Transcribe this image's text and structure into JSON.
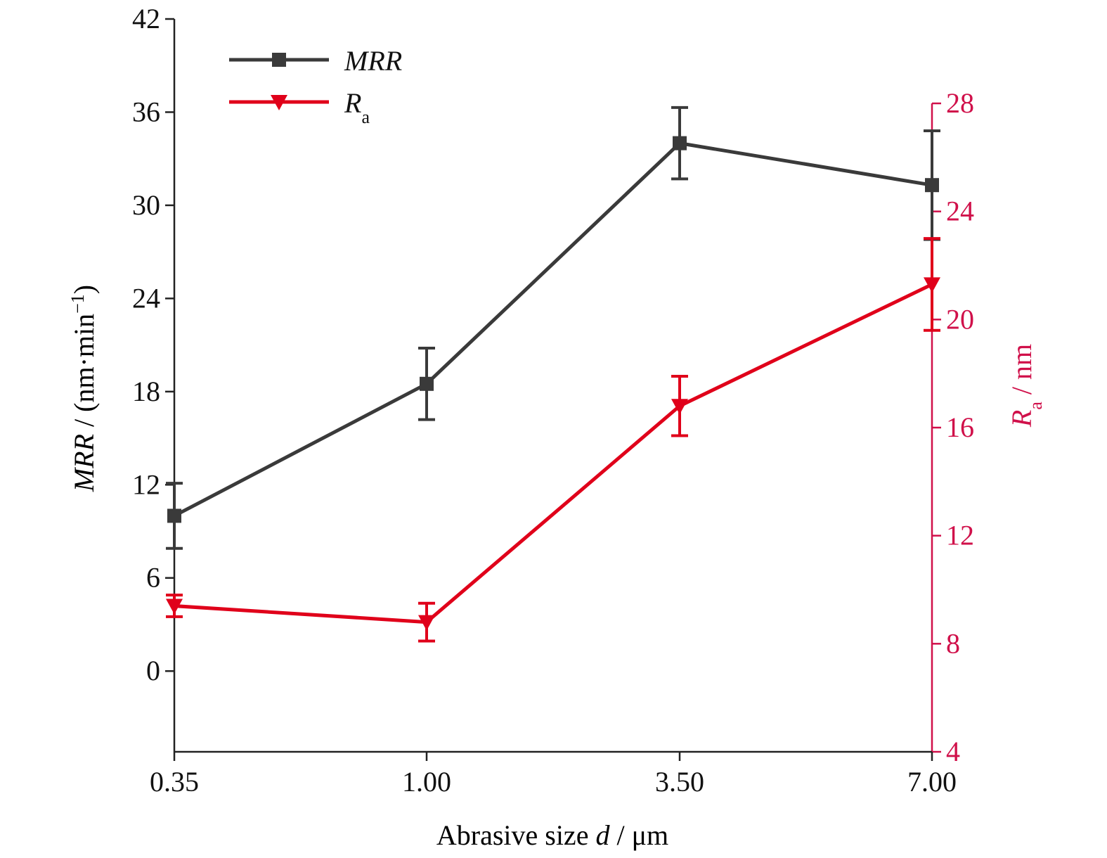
{
  "chart_data": {
    "type": "line",
    "xlabel_parts": [
      "Abrasive size ",
      "d",
      " / μm"
    ],
    "categories": [
      "0.35",
      "1.00",
      "3.50",
      "7.00"
    ],
    "y_left": {
      "label_parts": [
        "MRR",
        " / (nm·min",
        "−1",
        ")"
      ],
      "ylim": [
        -5.2,
        42
      ],
      "ticks": [
        0,
        6,
        12,
        18,
        24,
        30,
        36,
        42
      ],
      "tick_labels": [
        "0",
        "6",
        "12",
        "18",
        "24",
        "30",
        "36",
        "42"
      ]
    },
    "y_right": {
      "label_parts": [
        "R",
        "a",
        " / nm"
      ],
      "ylim": [
        4,
        28
      ],
      "ticks": [
        4,
        8,
        12,
        16,
        20,
        24,
        28
      ],
      "tick_labels": [
        "4",
        "8",
        "12",
        "16",
        "20",
        "24",
        "28"
      ]
    },
    "series": [
      {
        "name": "MRR",
        "axis": "left",
        "marker": "square",
        "color": "#3a3a3a",
        "values": [
          10.0,
          18.5,
          34.0,
          31.3
        ],
        "error": [
          2.1,
          2.3,
          2.3,
          3.5
        ]
      },
      {
        "name_parts": [
          "R",
          "a"
        ],
        "axis": "right",
        "marker": "triangle-down",
        "color": "#e0001a",
        "values": [
          9.4,
          8.8,
          16.8,
          21.3
        ],
        "error": [
          0.4,
          0.7,
          1.1,
          1.7
        ]
      }
    ],
    "legend_position": "top-left",
    "grid": false,
    "axis_colors": {
      "left": "#222222",
      "right": "#d0104a"
    }
  }
}
